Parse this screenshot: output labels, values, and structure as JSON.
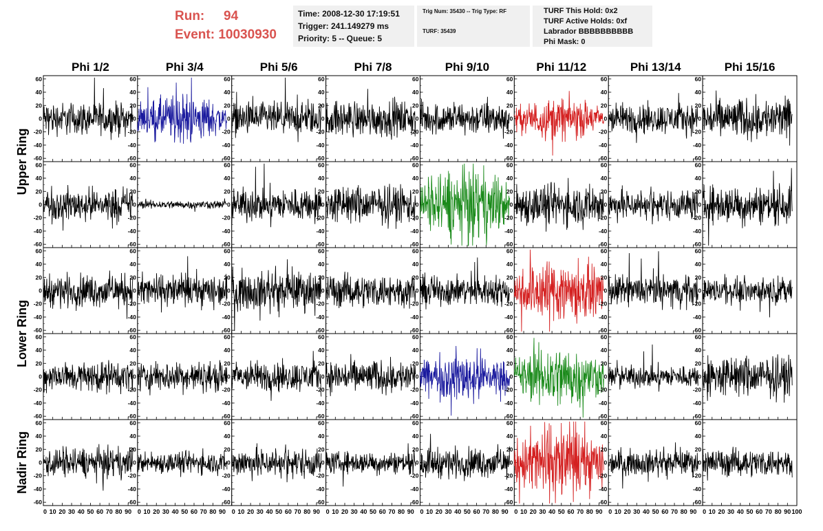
{
  "header": {
    "run_label": "Run:",
    "run_value": "94",
    "event_label": "Event:",
    "event_value": "10030930",
    "time_line": "Time: 2008-12-30 17:19:51",
    "trigger_line": "Trigger: 241.149279 ms",
    "priority_line": "Priority: 5 -- Queue: 5",
    "trig_num_line": "Trig Num: 35430 -- Trig Type: RF",
    "turf_line": "TURF: 35439",
    "turf_hold_line": "TURF This Hold: 0x2",
    "turf_active_line": "TURF Active Holds: 0xf",
    "labrador_line": "Labrador BBBBBBBBBB",
    "phi_mask_line": "Phi Mask: 0"
  },
  "chart_data": {
    "type": "line",
    "columns": [
      "Phi 1/2",
      "Phi 3/4",
      "Phi 5/6",
      "Phi 7/8",
      "Phi 9/10",
      "Phi 11/12",
      "Phi 13/14",
      "Phi 15/16"
    ],
    "row_groups": [
      {
        "label": "Upper Ring",
        "rows": [
          0,
          1
        ]
      },
      {
        "label": "Lower Ring",
        "rows": [
          2,
          3
        ]
      },
      {
        "label": "Nadir Ring",
        "rows": [
          4
        ]
      }
    ],
    "xlim": [
      0,
      100
    ],
    "ylim": [
      -65,
      65
    ],
    "y_ticks": [
      -60,
      -40,
      -20,
      0,
      20,
      40,
      60
    ],
    "x_tick_labels": [
      "0",
      "10",
      "20",
      "30",
      "40",
      "50",
      "60",
      "70",
      "80",
      "90",
      "100"
    ],
    "colors": {
      "black": "#000000",
      "blue": "#1a1a9e",
      "red": "#d42020",
      "green": "#1a8a1a"
    },
    "panel_colors": [
      [
        "black",
        "blue",
        "black",
        "black",
        "black",
        "red",
        "black",
        "black"
      ],
      [
        "black",
        "black",
        "black",
        "black",
        "green",
        "black",
        "black",
        "black"
      ],
      [
        "black",
        "black",
        "black",
        "black",
        "black",
        "red",
        "black",
        "black"
      ],
      [
        "black",
        "black",
        "black",
        "black",
        "blue",
        "green",
        "black",
        "black"
      ],
      [
        "black",
        "black",
        "black",
        "black",
        "black",
        "red",
        "black",
        "black"
      ]
    ],
    "panel_amplitudes": [
      [
        12,
        15,
        12,
        13,
        12,
        13,
        11,
        15
      ],
      [
        12,
        3,
        12,
        14,
        24,
        15,
        11,
        14
      ],
      [
        12,
        12,
        14,
        12,
        11,
        21,
        11,
        9
      ],
      [
        11,
        11,
        11,
        12,
        16,
        20,
        8,
        15
      ],
      [
        11,
        8,
        11,
        8,
        11,
        25,
        9,
        10
      ]
    ]
  }
}
